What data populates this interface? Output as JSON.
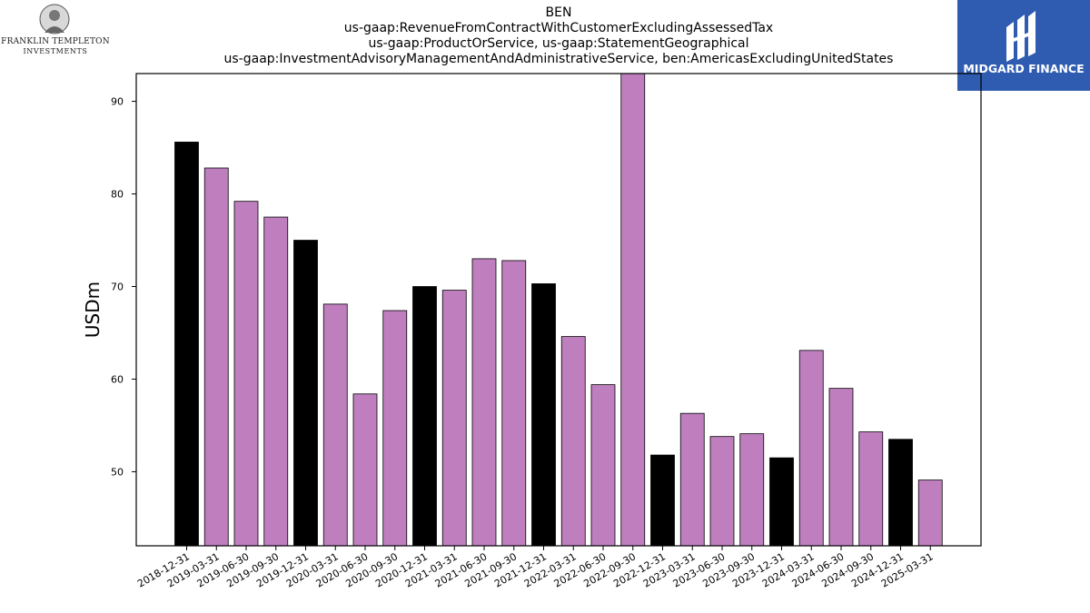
{
  "header": {
    "title_lines": [
      "BEN",
      "us-gaap:RevenueFromContractWithCustomerExcludingAssessedTax",
      "us-gaap:ProductOrService, us-gaap:StatementGeographical",
      "us-gaap:InvestmentAdvisoryManagementAndAdministrativeService, ben:AmericasExcludingUnitedStates"
    ]
  },
  "logos": {
    "left_line1": "FRANKLIN TEMPLETON",
    "left_line2": "INVESTMENTS",
    "right_name": "MIDGARD FINANCE",
    "right_bg_color": "#2f5cb0"
  },
  "chart_data": {
    "type": "bar",
    "ylabel": "USDm",
    "xlabel": "",
    "ylim": [
      42,
      93
    ],
    "yticks": [
      50,
      60,
      70,
      80,
      90
    ],
    "grid": false,
    "colors": {
      "q4": "#000000",
      "other": "#bf7fbf"
    },
    "categories": [
      "2018-12-31",
      "2019-03-31",
      "2019-06-30",
      "2019-09-30",
      "2019-12-31",
      "2020-03-31",
      "2020-06-30",
      "2020-09-30",
      "2020-12-31",
      "2021-03-31",
      "2021-06-30",
      "2021-09-30",
      "2021-12-31",
      "2022-03-31",
      "2022-06-30",
      "2022-09-30",
      "2022-12-31",
      "2023-03-31",
      "2023-06-30",
      "2023-09-30",
      "2023-12-31",
      "2024-03-31",
      "2024-06-30",
      "2024-09-30",
      "2024-12-31",
      "2025-03-31"
    ],
    "values": [
      85.6,
      82.8,
      79.2,
      77.5,
      75.0,
      68.1,
      58.4,
      67.4,
      70.0,
      69.6,
      73.0,
      72.8,
      70.3,
      64.6,
      59.4,
      95.0,
      51.8,
      56.3,
      53.8,
      54.1,
      51.5,
      63.1,
      59.0,
      54.3,
      53.5,
      49.1
    ]
  }
}
